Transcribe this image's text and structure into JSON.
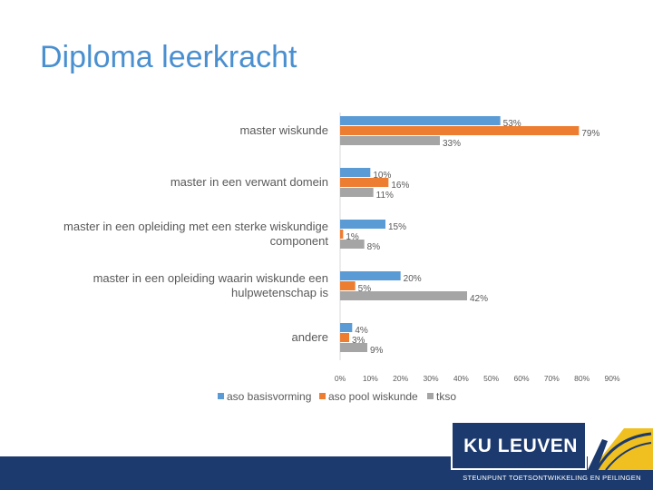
{
  "page": {
    "title": "Diploma leerkracht"
  },
  "brand": {
    "logo_text": "KU LEUVEN",
    "footer_text": "STEUNPUNT TOETSONTWIKKELING EN PEILINGEN",
    "navy": "#1c3a6e",
    "gold": "#f0c020"
  },
  "chart_data": {
    "type": "bar",
    "orientation": "horizontal",
    "categories": [
      [
        "master wiskunde"
      ],
      [
        "master in een verwant domein"
      ],
      [
        "master in een opleiding met een sterke wiskundige",
        "component"
      ],
      [
        "master in een opleiding waarin wiskunde een",
        "hulpwetenschap is"
      ],
      [
        "andere"
      ]
    ],
    "series": [
      {
        "name": "aso basisvorming",
        "color": "#5b9bd5",
        "values": [
          53,
          10,
          15,
          20,
          4
        ]
      },
      {
        "name": "aso pool wiskunde",
        "color": "#ed7d31",
        "values": [
          79,
          16,
          1,
          5,
          3
        ]
      },
      {
        "name": "tkso",
        "color": "#a5a5a5",
        "values": [
          33,
          11,
          8,
          42,
          9
        ]
      }
    ],
    "value_suffix": "%",
    "xlim": [
      0,
      90
    ],
    "x_ticks": [
      "0%",
      "10%",
      "20%",
      "30%",
      "40%",
      "50%",
      "60%",
      "70%",
      "80%",
      "90%"
    ],
    "legend_position": "bottom",
    "grid": false
  }
}
